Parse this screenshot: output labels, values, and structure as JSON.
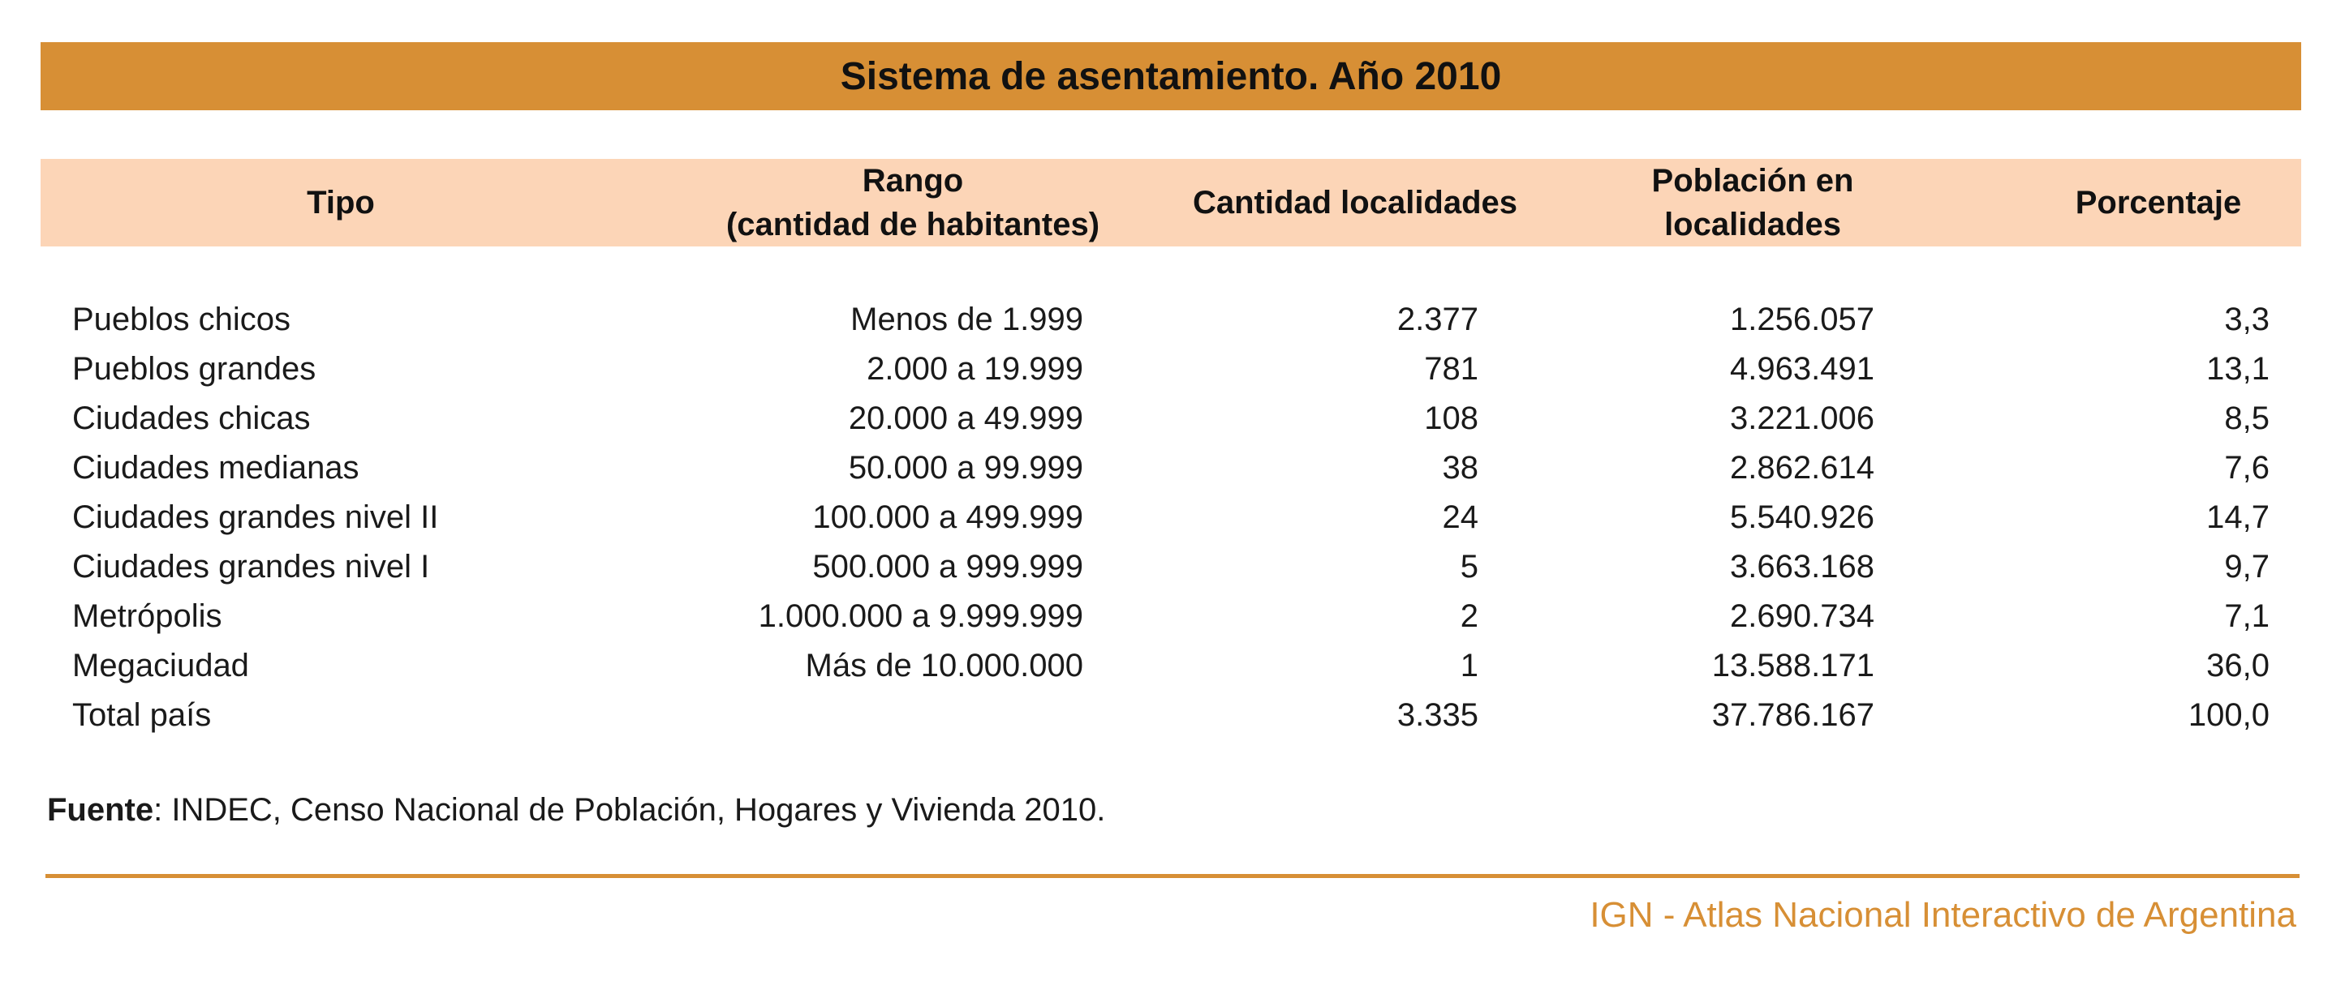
{
  "colors": {
    "accent": "#d78f35",
    "header_bg": "#fcd5b7"
  },
  "chart_data": {
    "type": "table",
    "title": "Sistema de asentamiento. Año 2010",
    "columns": [
      {
        "line1": "Tipo",
        "line2": ""
      },
      {
        "line1": "Rango",
        "line2": "(cantidad de habitantes)"
      },
      {
        "line1": "Cantidad localidades",
        "line2": ""
      },
      {
        "line1": "Población en",
        "line2": "localidades"
      },
      {
        "line1": "Porcentaje",
        "line2": ""
      }
    ],
    "rows": [
      {
        "tipo": "Pueblos chicos",
        "rango": "Menos de 1.999",
        "cantidad": "2.377",
        "poblacion": "1.256.057",
        "porcentaje": "3,3"
      },
      {
        "tipo": "Pueblos grandes",
        "rango": "2.000 a 19.999",
        "cantidad": "781",
        "poblacion": "4.963.491",
        "porcentaje": "13,1"
      },
      {
        "tipo": "Ciudades chicas",
        "rango": "20.000 a 49.999",
        "cantidad": "108",
        "poblacion": "3.221.006",
        "porcentaje": "8,5"
      },
      {
        "tipo": "Ciudades medianas",
        "rango": "50.000 a 99.999",
        "cantidad": "38",
        "poblacion": "2.862.614",
        "porcentaje": "7,6"
      },
      {
        "tipo": "Ciudades grandes nivel II",
        "rango": "100.000 a 499.999",
        "cantidad": "24",
        "poblacion": "5.540.926",
        "porcentaje": "14,7"
      },
      {
        "tipo": "Ciudades grandes nivel I",
        "rango": "500.000 a 999.999",
        "cantidad": "5",
        "poblacion": "3.663.168",
        "porcentaje": "9,7"
      },
      {
        "tipo": "Metrópolis",
        "rango": "1.000.000 a 9.999.999",
        "cantidad": "2",
        "poblacion": "2.690.734",
        "porcentaje": "7,1"
      },
      {
        "tipo": "Megaciudad",
        "rango": "Más de 10.000.000",
        "cantidad": "1",
        "poblacion": "13.588.171",
        "porcentaje": "36,0"
      },
      {
        "tipo": "Total país",
        "rango": "",
        "cantidad": "3.335",
        "poblacion": "37.786.167",
        "porcentaje": "100,0"
      }
    ]
  },
  "source": {
    "label": "Fuente",
    "text": ": INDEC, Censo Nacional de Población, Hogares y Vivienda 2010."
  },
  "footer": {
    "text": "IGN - Atlas Nacional Interactivo de Argentina"
  }
}
